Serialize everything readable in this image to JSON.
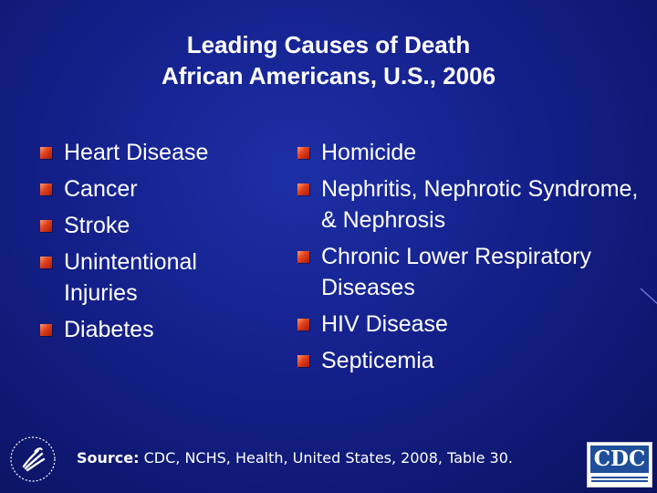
{
  "title": {
    "line1": "Leading Causes of Death",
    "line2": "African Americans, U.S., 2006"
  },
  "left_list": [
    "Heart Disease",
    "Cancer",
    "Stroke",
    "Unintentional Injuries",
    "Diabetes"
  ],
  "right_list": [
    "Homicide",
    "Nephritis, Nephrotic Syndrome, & Nephrosis",
    "Chronic Lower Respiratory Diseases",
    "HIV Disease",
    "Septicemia"
  ],
  "source": {
    "label": "Source:",
    "text": " CDC, NCHS, Health, United States, 2008, Table 30."
  },
  "logos": {
    "cdc": "CDC",
    "hhs_icon": "hhs-eagle-seal-icon"
  },
  "colors": {
    "background": "#14208a",
    "bullet": "#e0401c",
    "cdc_blue": "#1f4f9a"
  }
}
